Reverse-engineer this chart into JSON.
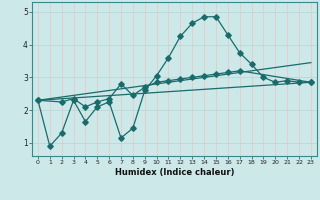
{
  "xlabel": "Humidex (Indice chaleur)",
  "bg_color": "#cce8e8",
  "grid_color": "#b0d8d8",
  "line_color": "#1a6b6b",
  "x_ticks": [
    0,
    1,
    2,
    3,
    4,
    5,
    6,
    7,
    8,
    9,
    10,
    11,
    12,
    13,
    14,
    15,
    16,
    17,
    18,
    19,
    20,
    21,
    22,
    23
  ],
  "y_ticks": [
    1,
    2,
    3,
    4,
    5
  ],
  "ylim": [
    0.6,
    5.3
  ],
  "xlim": [
    -0.5,
    23.5
  ],
  "curve1_x": [
    0,
    1,
    2,
    3,
    4,
    5,
    6,
    7,
    8,
    9,
    10,
    11,
    12,
    13,
    14,
    15,
    16,
    17,
    18,
    19,
    20,
    21,
    22,
    23
  ],
  "curve1_y": [
    2.3,
    0.9,
    1.3,
    2.3,
    1.65,
    2.1,
    2.25,
    1.15,
    1.45,
    2.6,
    3.05,
    3.6,
    4.25,
    4.65,
    4.85,
    4.85,
    4.3,
    3.75,
    3.4,
    3.0,
    2.85,
    2.9,
    2.85,
    2.85
  ],
  "curve2_x": [
    0,
    2,
    3,
    4,
    5,
    6,
    7,
    8,
    9,
    10,
    11,
    12,
    13,
    14,
    15,
    16,
    17,
    23
  ],
  "curve2_y": [
    2.3,
    2.25,
    2.35,
    2.1,
    2.25,
    2.35,
    2.8,
    2.45,
    2.7,
    2.85,
    2.9,
    2.95,
    3.0,
    3.05,
    3.1,
    3.15,
    3.2,
    2.85
  ],
  "curve3_x": [
    0,
    23
  ],
  "curve3_y": [
    2.3,
    2.85
  ],
  "curve4_x": [
    0,
    23
  ],
  "curve4_y": [
    2.3,
    3.45
  ]
}
